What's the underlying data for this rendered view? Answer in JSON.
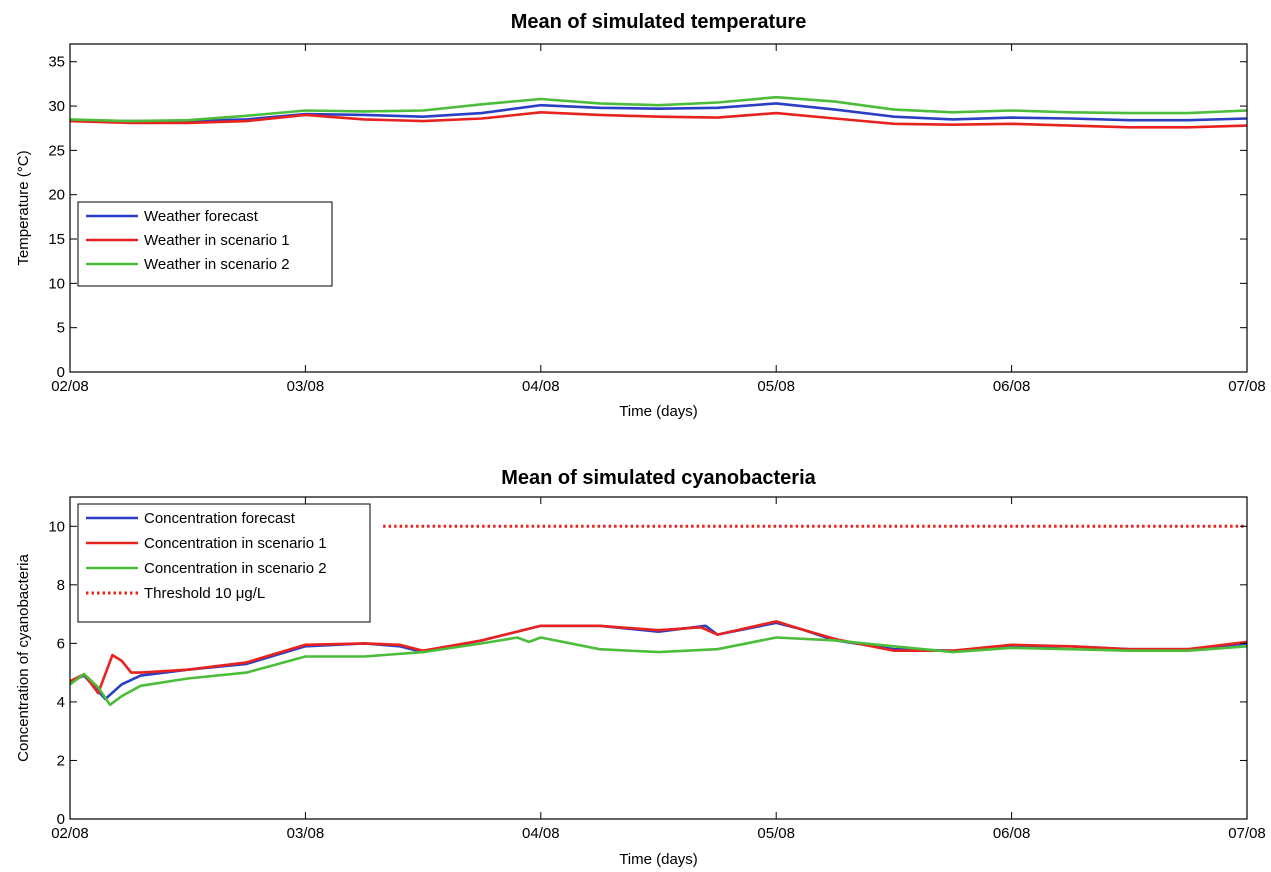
{
  "chart_data": [
    {
      "type": "line",
      "title": "Mean of simulated temperature",
      "xlabel": "Time (days)",
      "ylabel": "Temperature (°C)",
      "xlim": [
        0,
        5
      ],
      "ylim": [
        0,
        37
      ],
      "x_ticks": [
        0,
        1,
        2,
        3,
        4,
        5
      ],
      "x_tick_labels": [
        "02/08",
        "03/08",
        "04/08",
        "05/08",
        "06/08",
        "07/08"
      ],
      "y_ticks": [
        0,
        5,
        10,
        15,
        20,
        25,
        30,
        35
      ],
      "y_tick_labels": [
        "0",
        "5",
        "10",
        "15",
        "20",
        "25",
        "30",
        "35"
      ],
      "grid": false,
      "legend_position": "left",
      "series": [
        {
          "name": "Weather forecast",
          "color": "#2b3fc4",
          "dash": false,
          "x": [
            0,
            0.25,
            0.5,
            0.75,
            1.0,
            1.25,
            1.5,
            1.75,
            2.0,
            2.25,
            2.5,
            2.75,
            3.0,
            3.25,
            3.5,
            3.75,
            4.0,
            4.25,
            4.5,
            4.75,
            5.0
          ],
          "y": [
            28.4,
            28.3,
            28.3,
            28.5,
            29.1,
            29.0,
            28.8,
            29.2,
            30.1,
            29.8,
            29.7,
            29.8,
            30.3,
            29.6,
            28.8,
            28.5,
            28.7,
            28.6,
            28.4,
            28.4,
            28.6
          ]
        },
        {
          "name": "Weather in scenario 1",
          "color": "#e8231f",
          "dash": false,
          "x": [
            0,
            0.25,
            0.5,
            0.75,
            1.0,
            1.25,
            1.5,
            1.75,
            2.0,
            2.25,
            2.5,
            2.75,
            3.0,
            3.25,
            3.5,
            3.75,
            4.0,
            4.25,
            4.5,
            4.75,
            5.0
          ],
          "y": [
            28.3,
            28.1,
            28.1,
            28.3,
            29.0,
            28.5,
            28.3,
            28.6,
            29.3,
            29.0,
            28.8,
            28.7,
            29.2,
            28.6,
            28.0,
            27.9,
            28.0,
            27.8,
            27.6,
            27.6,
            27.8
          ]
        },
        {
          "name": "Weather in scenario 2",
          "color": "#4cbd3b",
          "dash": false,
          "x": [
            0,
            0.25,
            0.5,
            0.75,
            1.0,
            1.25,
            1.5,
            1.75,
            2.0,
            2.25,
            2.5,
            2.75,
            3.0,
            3.25,
            3.5,
            3.75,
            4.0,
            4.25,
            4.5,
            4.75,
            5.0
          ],
          "y": [
            28.5,
            28.3,
            28.4,
            28.9,
            29.5,
            29.4,
            29.5,
            30.2,
            30.8,
            30.3,
            30.1,
            30.4,
            31.0,
            30.5,
            29.6,
            29.3,
            29.5,
            29.3,
            29.2,
            29.2,
            29.5
          ]
        }
      ]
    },
    {
      "type": "line",
      "title": "Mean of simulated cyanobacteria",
      "xlabel": "Time (days)",
      "ylabel": "Concentration of cyanobacteria",
      "xlim": [
        0,
        5
      ],
      "ylim": [
        0,
        11
      ],
      "x_ticks": [
        0,
        1,
        2,
        3,
        4,
        5
      ],
      "x_tick_labels": [
        "02/08",
        "03/08",
        "04/08",
        "05/08",
        "06/08",
        "07/08"
      ],
      "y_ticks": [
        0,
        2,
        4,
        6,
        8,
        10
      ],
      "y_tick_labels": [
        "0",
        "2",
        "4",
        "6",
        "8",
        "10"
      ],
      "grid": false,
      "legend_position": "top-left",
      "series": [
        {
          "name": "Concentration forecast",
          "color": "#2b3fc4",
          "dash": false,
          "x": [
            0,
            0.06,
            0.15,
            0.22,
            0.3,
            0.5,
            0.75,
            1.0,
            1.25,
            1.4,
            1.5,
            1.75,
            2.0,
            2.25,
            2.5,
            2.7,
            2.75,
            3.0,
            3.1,
            3.25,
            3.5,
            3.75,
            4.0,
            4.25,
            4.5,
            4.75,
            5.0
          ],
          "y": [
            4.7,
            4.9,
            4.1,
            4.6,
            4.9,
            5.1,
            5.3,
            5.9,
            6.0,
            5.9,
            5.7,
            6.1,
            6.6,
            6.6,
            6.4,
            6.6,
            6.3,
            6.7,
            6.5,
            6.1,
            5.8,
            5.75,
            5.9,
            5.9,
            5.8,
            5.8,
            6.0
          ]
        },
        {
          "name": "Concentration in scenario 1",
          "color": "#e8231f",
          "dash": false,
          "x": [
            0,
            0.06,
            0.12,
            0.18,
            0.22,
            0.26,
            0.3,
            0.5,
            0.75,
            1.0,
            1.25,
            1.4,
            1.5,
            1.75,
            2.0,
            2.25,
            2.5,
            2.68,
            2.75,
            3.0,
            3.1,
            3.25,
            3.5,
            3.75,
            4.0,
            4.25,
            4.5,
            4.75,
            5.0
          ],
          "y": [
            4.7,
            4.95,
            4.3,
            5.6,
            5.4,
            5.0,
            5.0,
            5.1,
            5.35,
            5.95,
            6.0,
            5.95,
            5.75,
            6.1,
            6.6,
            6.6,
            6.45,
            6.55,
            6.3,
            6.75,
            6.5,
            6.15,
            5.75,
            5.75,
            5.95,
            5.9,
            5.8,
            5.8,
            6.05
          ]
        },
        {
          "name": "Concentration in scenario 2",
          "color": "#4cbd3b",
          "dash": false,
          "x": [
            0,
            0.06,
            0.12,
            0.17,
            0.22,
            0.3,
            0.5,
            0.75,
            1.0,
            1.25,
            1.5,
            1.75,
            1.9,
            1.95,
            2.0,
            2.25,
            2.5,
            2.75,
            3.0,
            3.25,
            3.5,
            3.75,
            4.0,
            4.25,
            4.5,
            4.75,
            5.0
          ],
          "y": [
            4.6,
            4.95,
            4.5,
            3.9,
            4.2,
            4.55,
            4.8,
            5.0,
            5.55,
            5.55,
            5.7,
            6.0,
            6.2,
            6.05,
            6.2,
            5.8,
            5.7,
            5.8,
            6.2,
            6.1,
            5.9,
            5.7,
            5.85,
            5.8,
            5.75,
            5.75,
            5.9
          ]
        },
        {
          "name": "Threshold 10 μg/L",
          "color": "#e8231f",
          "dash": true,
          "x": [
            1.33,
            5.0
          ],
          "y": [
            10,
            10
          ]
        }
      ]
    }
  ]
}
